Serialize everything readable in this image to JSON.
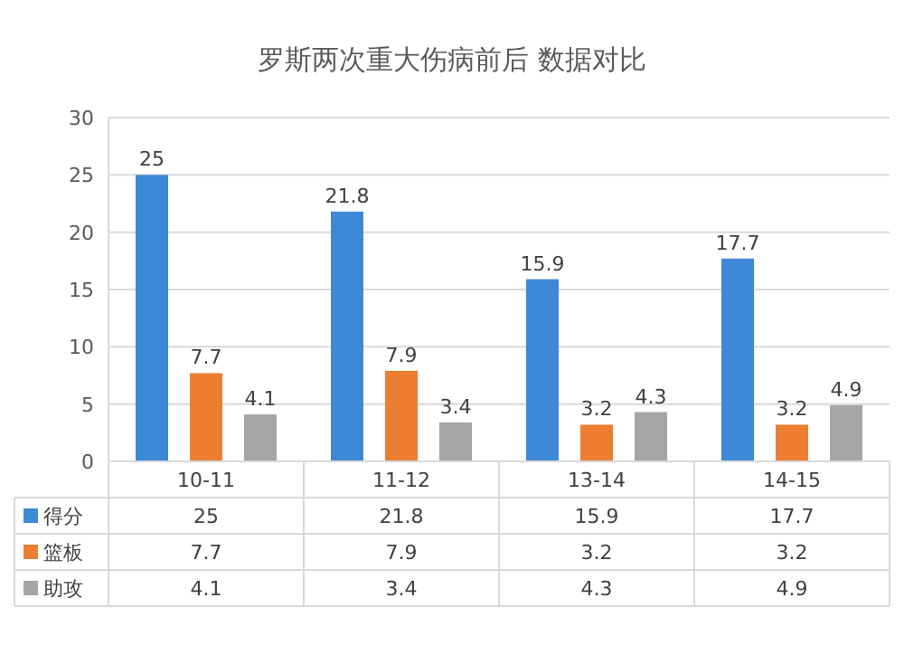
{
  "chart_data": {
    "type": "bar",
    "title": "罗斯两次重大伤病前后 数据对比",
    "categories": [
      "10-11",
      "11-12",
      "13-14",
      "14-15"
    ],
    "series": [
      {
        "name": "得分",
        "color": "#3e88d8",
        "values": [
          25,
          21.8,
          15.9,
          17.7
        ]
      },
      {
        "name": "篮板",
        "color": "#ed7d31",
        "values": [
          7.7,
          7.9,
          3.2,
          3.2
        ]
      },
      {
        "name": "助攻",
        "color": "#a5a5a5",
        "values": [
          4.1,
          3.4,
          4.3,
          4.9
        ]
      }
    ],
    "ylim": [
      0,
      30
    ],
    "yticks": [
      0,
      5,
      10,
      15,
      20,
      25,
      30
    ],
    "grid": "y",
    "legend": "bottom",
    "data_labels": true,
    "annotations": [
      "25",
      "21.8",
      "15.9",
      "17.7",
      "7.7",
      "7.9",
      "3.2",
      "3.2",
      "4.1",
      "3.4",
      "4.3",
      "4.9"
    ]
  }
}
